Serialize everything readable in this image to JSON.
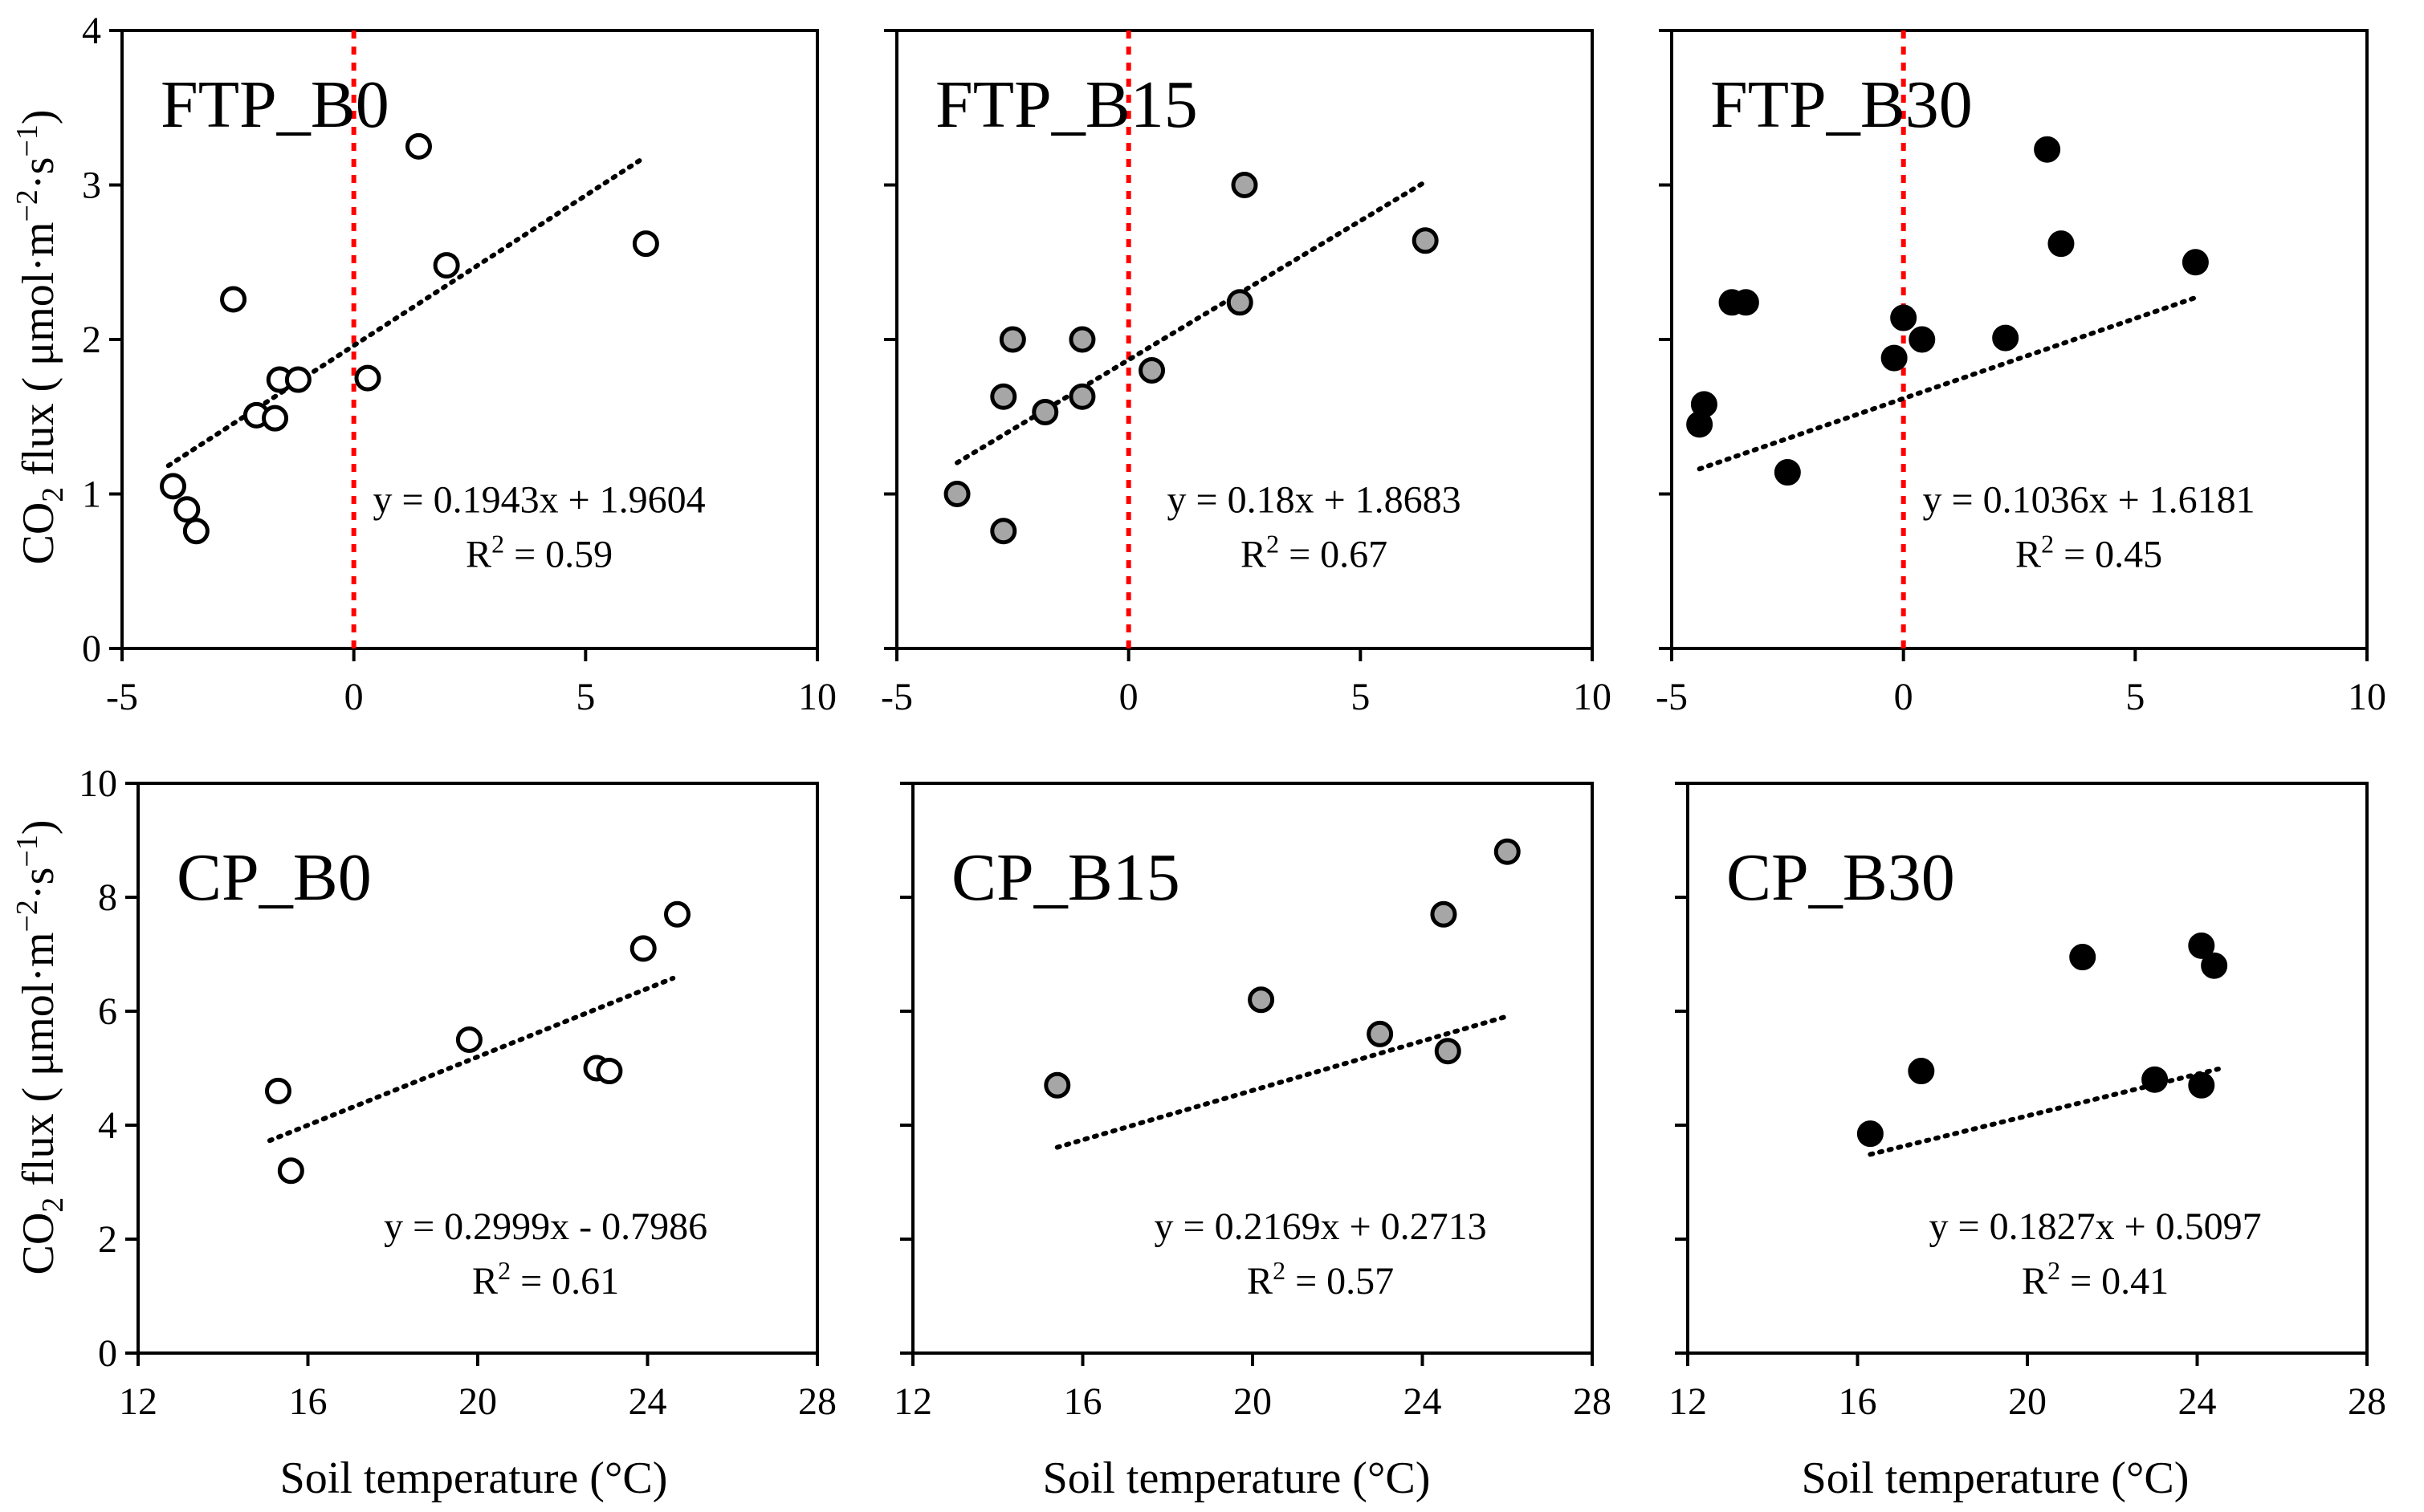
{
  "colors": {
    "open_fill": "#ffffff",
    "gray_fill": "#a6a6a6",
    "black_fill": "#000000",
    "zero_line": "#ff0000",
    "trend_line": "#000000"
  },
  "axis_titles": {
    "y_prefix": "CO",
    "y_sub": "2",
    "y_rest": " flux ( μmol·m",
    "y_exp1": "−2",
    "y_mid": "·s",
    "y_exp2": "−1",
    "y_end": ")",
    "x": "Soil temperature (°C)"
  },
  "chart_data": [
    {
      "type": "scatter",
      "label": "FTP_B0",
      "marker": "open",
      "xlim": [
        -5,
        10
      ],
      "ylim": [
        0,
        4
      ],
      "x_ticks": [
        "-5",
        "0",
        "5",
        "10"
      ],
      "y_ticks": [
        "0",
        "1",
        "2",
        "3",
        "4"
      ],
      "zero_line": true,
      "trend": {
        "slope": 0.1943,
        "intercept": 1.9604,
        "x_range": [
          -4.0,
          6.2
        ]
      },
      "equation": "y = 0.1943x + 1.9604",
      "r2_prefix": "R",
      "r2_exp": "2",
      "r2_value": " = 0.59",
      "points": [
        [
          -3.9,
          1.05
        ],
        [
          -3.6,
          0.9
        ],
        [
          -3.4,
          0.76
        ],
        [
          -2.6,
          2.26
        ],
        [
          -2.1,
          1.51
        ],
        [
          -1.7,
          1.49
        ],
        [
          -1.6,
          1.74
        ],
        [
          -1.2,
          1.74
        ],
        [
          0.3,
          1.75
        ],
        [
          1.4,
          3.25
        ],
        [
          2.0,
          2.48
        ],
        [
          6.3,
          2.62
        ]
      ]
    },
    {
      "type": "scatter",
      "label": "FTP_B15",
      "marker": "gray",
      "xlim": [
        -5,
        10
      ],
      "ylim": [
        0,
        4
      ],
      "x_ticks": [
        "-5",
        "0",
        "5",
        "10"
      ],
      "y_ticks": [],
      "zero_line": true,
      "trend": {
        "slope": 0.18,
        "intercept": 1.8683,
        "x_range": [
          -3.7,
          6.4
        ]
      },
      "equation": "y = 0.18x + 1.8683",
      "r2_prefix": "R",
      "r2_exp": "2",
      "r2_value": " = 0.67",
      "points": [
        [
          -3.7,
          1.0
        ],
        [
          -2.7,
          0.76
        ],
        [
          -2.7,
          1.63
        ],
        [
          -2.5,
          2.0
        ],
        [
          -1.8,
          1.53
        ],
        [
          -1.0,
          2.0
        ],
        [
          -1.0,
          1.63
        ],
        [
          0.5,
          1.8
        ],
        [
          2.4,
          2.24
        ],
        [
          2.5,
          3.0
        ],
        [
          6.4,
          2.64
        ]
      ]
    },
    {
      "type": "scatter",
      "label": "FTP_B30",
      "marker": "black",
      "xlim": [
        -5,
        10
      ],
      "ylim": [
        0,
        4
      ],
      "x_ticks": [
        "-5",
        "0",
        "5",
        "10"
      ],
      "y_ticks": [],
      "zero_line": true,
      "trend": {
        "slope": 0.1036,
        "intercept": 1.6181,
        "x_range": [
          -4.4,
          6.3
        ]
      },
      "equation": "y = 0.1036x + 1.6181",
      "r2_prefix": "R",
      "r2_exp": "2",
      "r2_value": " = 0.45",
      "points": [
        [
          -4.4,
          1.45
        ],
        [
          -4.3,
          1.58
        ],
        [
          -3.7,
          2.24
        ],
        [
          -3.4,
          2.24
        ],
        [
          -2.5,
          1.14
        ],
        [
          -0.2,
          1.88
        ],
        [
          0.0,
          2.14
        ],
        [
          0.4,
          2.0
        ],
        [
          2.2,
          2.01
        ],
        [
          3.1,
          3.23
        ],
        [
          3.4,
          2.62
        ],
        [
          6.3,
          2.5
        ]
      ]
    },
    {
      "type": "scatter",
      "label": "CP_B0",
      "marker": "open",
      "xlim": [
        12,
        28
      ],
      "ylim": [
        0,
        10
      ],
      "x_ticks": [
        "12",
        "16",
        "20",
        "24",
        "28"
      ],
      "y_ticks": [
        "0",
        "2",
        "4",
        "6",
        "8",
        "10"
      ],
      "zero_line": false,
      "trend": {
        "slope": 0.2999,
        "intercept": -0.7986,
        "x_range": [
          15.1,
          24.6
        ]
      },
      "equation": "y = 0.2999x - 0.7986",
      "r2_prefix": "R",
      "r2_exp": "2",
      "r2_value": " = 0.61",
      "points": [
        [
          15.3,
          4.6
        ],
        [
          15.6,
          3.2
        ],
        [
          19.8,
          5.5
        ],
        [
          22.8,
          5.0
        ],
        [
          23.1,
          4.95
        ],
        [
          23.9,
          7.1
        ],
        [
          24.7,
          7.7
        ]
      ]
    },
    {
      "type": "scatter",
      "label": "CP_B15",
      "marker": "gray",
      "xlim": [
        12,
        28
      ],
      "ylim": [
        0,
        10
      ],
      "x_ticks": [
        "12",
        "16",
        "20",
        "24",
        "28"
      ],
      "y_ticks": [],
      "zero_line": false,
      "trend": {
        "slope": 0.2169,
        "intercept": 0.2713,
        "x_range": [
          15.4,
          26.0
        ]
      },
      "equation": "y = 0.2169x + 0.2713",
      "r2_prefix": "R",
      "r2_exp": "2",
      "r2_value": " = 0.57",
      "points": [
        [
          15.4,
          4.7
        ],
        [
          20.2,
          6.2
        ],
        [
          23.0,
          5.6
        ],
        [
          24.5,
          7.7
        ],
        [
          24.6,
          5.3
        ],
        [
          26.0,
          8.8
        ]
      ]
    },
    {
      "type": "scatter",
      "label": "CP_B30",
      "marker": "black",
      "xlim": [
        12,
        28
      ],
      "ylim": [
        0,
        10
      ],
      "x_ticks": [
        "12",
        "16",
        "20",
        "24",
        "28"
      ],
      "y_ticks": [],
      "zero_line": false,
      "trend": {
        "slope": 0.1827,
        "intercept": 0.5097,
        "x_range": [
          16.3,
          24.5
        ]
      },
      "equation": "y = 0.1827x + 0.5097",
      "r2_prefix": "R",
      "r2_exp": "2",
      "r2_value": " = 0.41",
      "points": [
        [
          16.3,
          3.85
        ],
        [
          17.5,
          4.95
        ],
        [
          21.3,
          6.95
        ],
        [
          23.0,
          4.8
        ],
        [
          24.1,
          7.15
        ],
        [
          24.1,
          4.7
        ],
        [
          24.4,
          6.8
        ]
      ]
    }
  ]
}
